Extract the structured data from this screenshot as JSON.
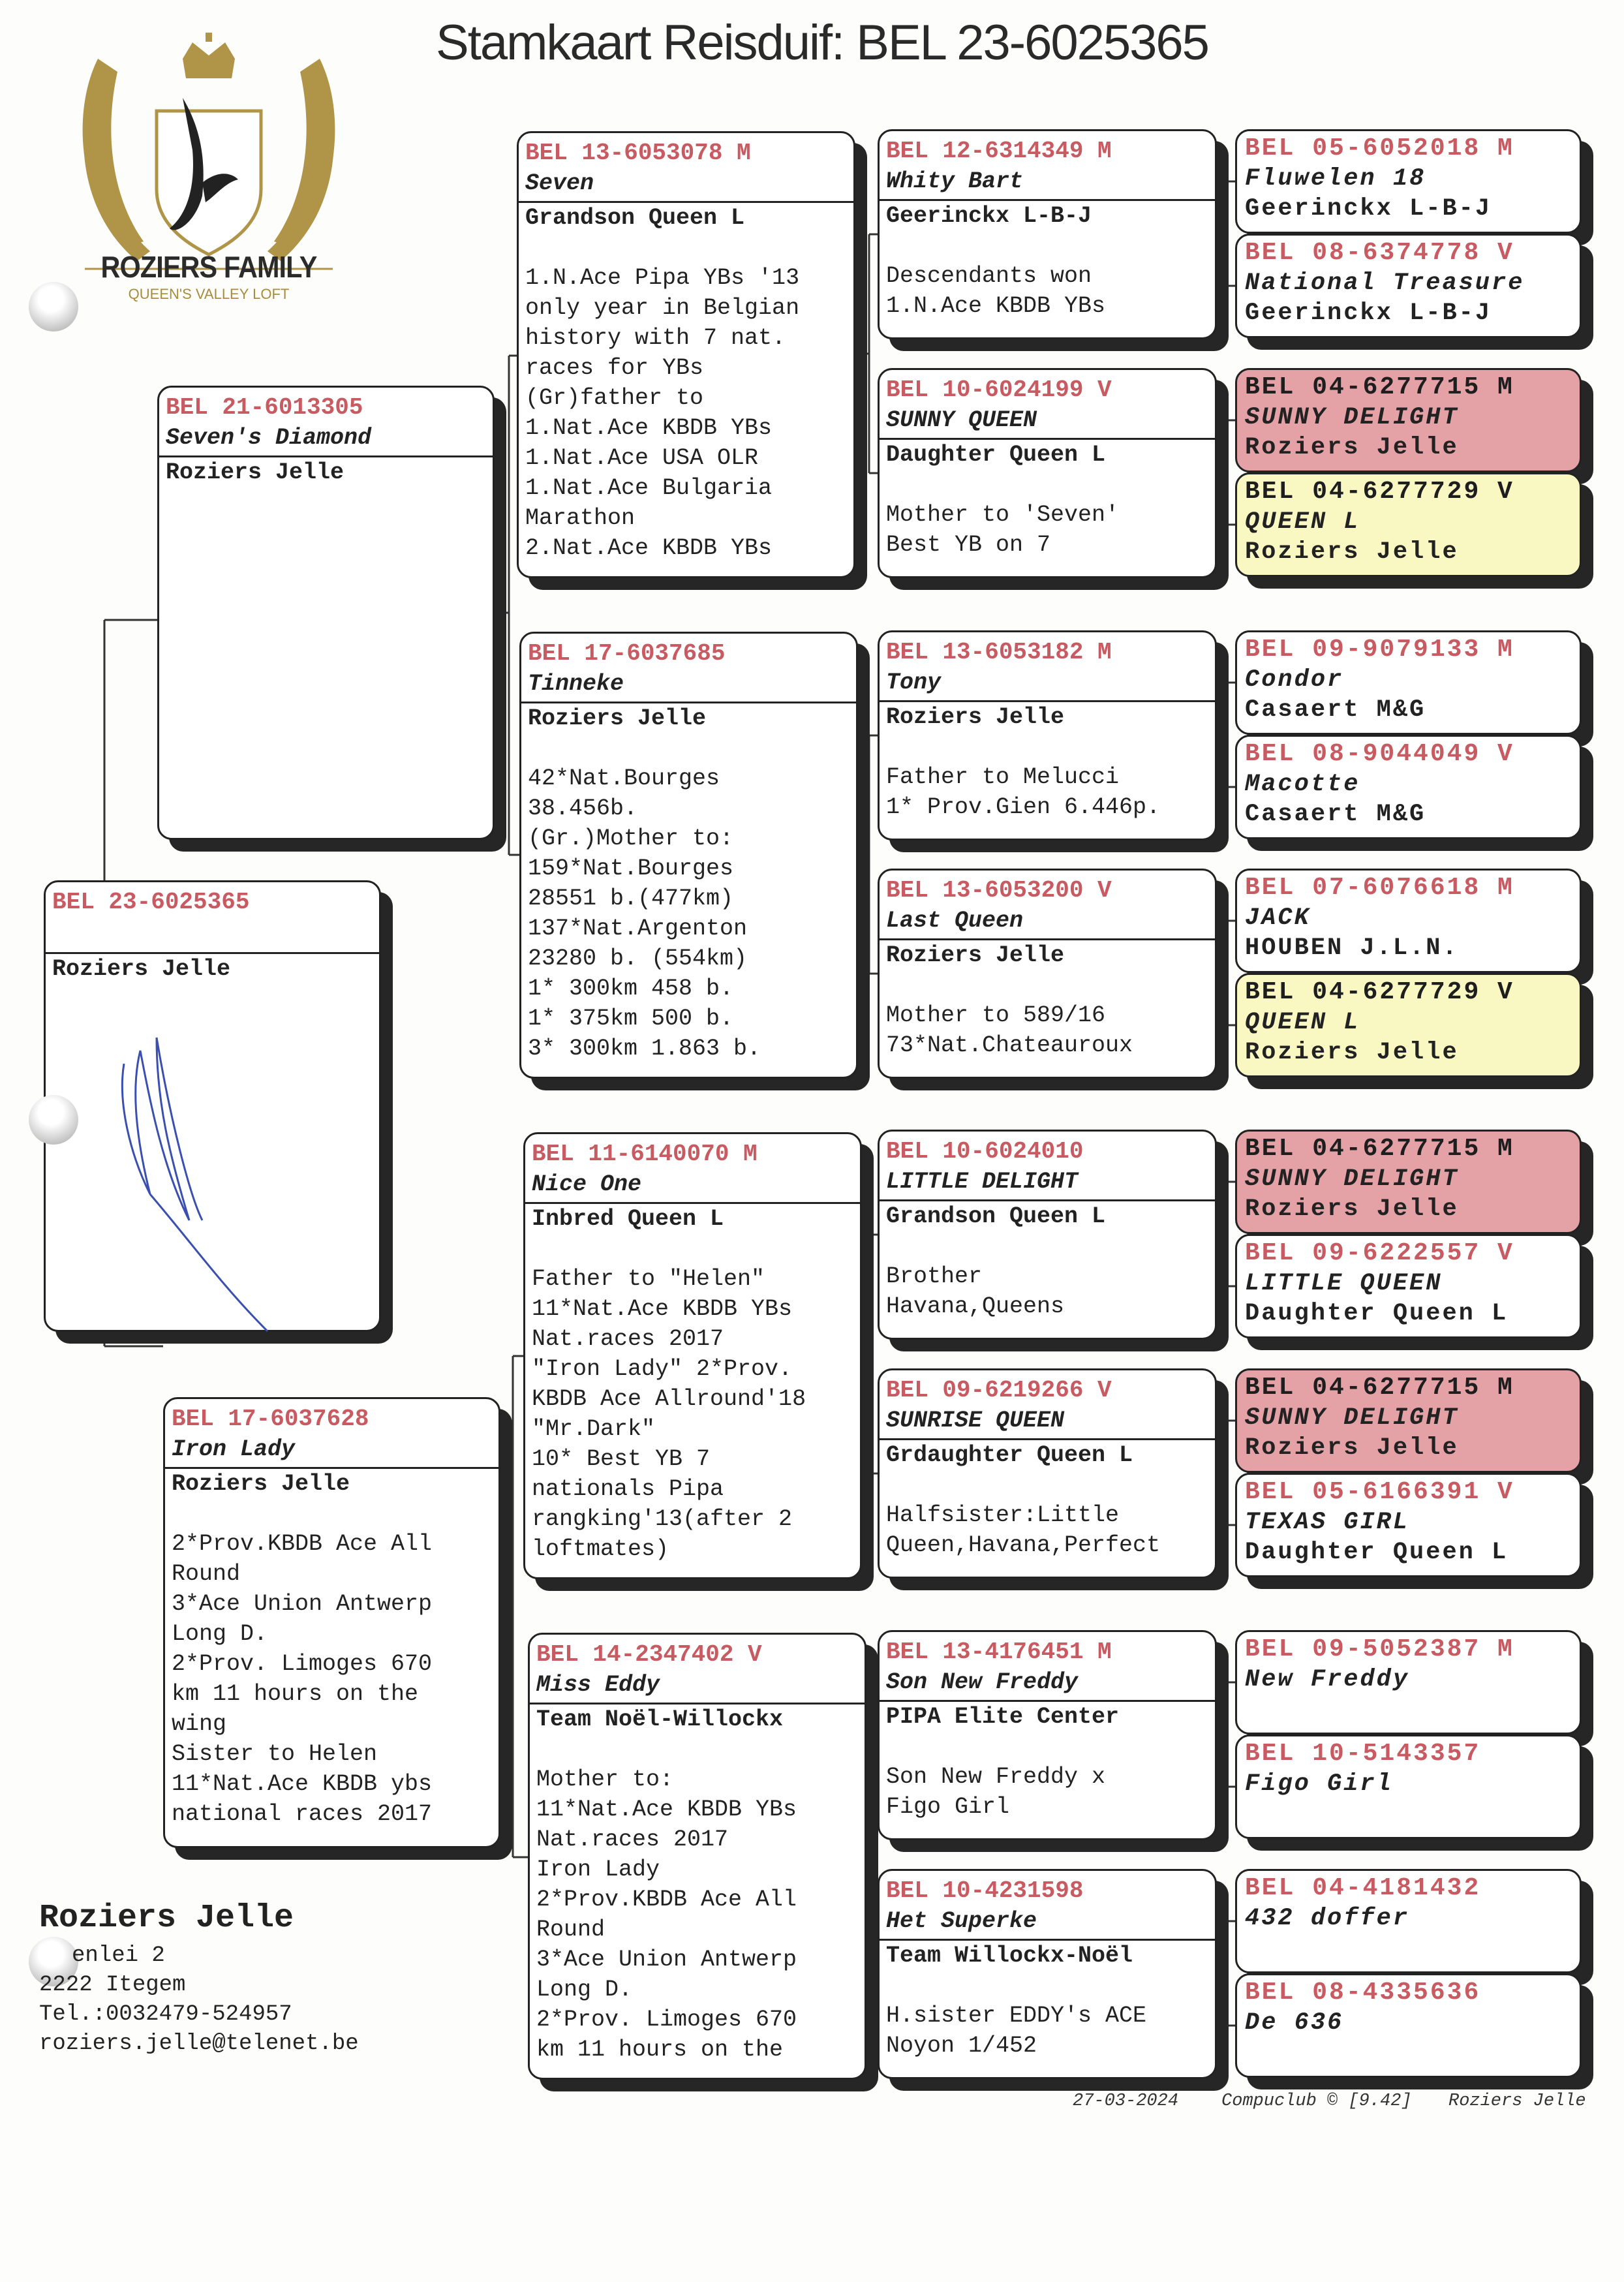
{
  "title": "Stamkaart Reisduif: BEL 23-6025365",
  "logo": {
    "name": "ROZIERS FAMILY",
    "tagline": "QUEEN'S VALLEY LOFT",
    "gold": "#b09448"
  },
  "colors": {
    "ring_red": "#c85a62",
    "highlight_pink": "#e4a2a6",
    "highlight_yellow": "#f9f7c2",
    "signature_blue": "#3a4fb0"
  },
  "subject": {
    "ring": "BEL 23-6025365",
    "owner": "Roziers Jelle"
  },
  "gen2": [
    {
      "ring": "BEL 21-6013305",
      "name": "Seven's Diamond",
      "owner": "Roziers Jelle",
      "notes": []
    },
    {
      "ring": "BEL 17-6037628",
      "name": "Iron Lady",
      "owner": "Roziers Jelle",
      "notes": [
        "2*Prov.KBDB Ace All",
        "Round",
        "3*Ace Union Antwerp",
        "Long D.",
        "2*Prov. Limoges 670",
        "km 11 hours on the",
        "wing",
        "Sister to Helen",
        "11*Nat.Ace KBDB ybs",
        "national races 2017"
      ]
    }
  ],
  "gen3": [
    {
      "ring": "BEL 13-6053078 M",
      "name": "Seven",
      "owner": "Grandson Queen L",
      "notes": [
        "1.N.Ace Pipa YBs '13",
        "only year in Belgian",
        "history with 7 nat.",
        "races for YBs",
        "(Gr)father to",
        "1.Nat.Ace KBDB YBs",
        "1.Nat.Ace USA OLR",
        "1.Nat.Ace Bulgaria",
        "Marathon",
        "2.Nat.Ace KBDB YBs"
      ]
    },
    {
      "ring": "BEL 17-6037685",
      "name": "Tinneke",
      "owner": "Roziers Jelle",
      "notes": [
        "42*Nat.Bourges",
        "38.456b.",
        "(Gr.)Mother to:",
        "159*Nat.Bourges",
        "28551 b.(477km)",
        "137*Nat.Argenton",
        "23280 b. (554km)",
        "1* 300km 458 b.",
        "1* 375km 500 b.",
        "3* 300km 1.863 b."
      ]
    },
    {
      "ring": "BEL 11-6140070 M",
      "name": "Nice One",
      "owner": "Inbred Queen L",
      "notes": [
        "Father to \"Helen\"",
        "11*Nat.Ace KBDB YBs",
        "Nat.races 2017",
        "\"Iron Lady\" 2*Prov.",
        "KBDB Ace Allround'18",
        "\"Mr.Dark\"",
        "10* Best YB 7",
        "nationals Pipa",
        "rangking'13(after 2",
        "loftmates)"
      ]
    },
    {
      "ring": "BEL 14-2347402 V",
      "name": "Miss Eddy",
      "owner": "Team Noël-Willockx",
      "notes": [
        "Mother to:",
        "11*Nat.Ace KBDB YBs",
        "Nat.races 2017",
        "Iron Lady",
        "2*Prov.KBDB Ace All",
        "Round",
        "3*Ace Union Antwerp",
        "Long D.",
        "2*Prov. Limoges 670",
        "km 11 hours on the"
      ]
    }
  ],
  "gen4": [
    {
      "ring": "BEL 12-6314349 M",
      "name": "Whity Bart",
      "owner": "Geerinckx L-B-J",
      "notes": [
        "Descendants won",
        "1.N.Ace KBDB YBs"
      ]
    },
    {
      "ring": "BEL 10-6024199 V",
      "name": "SUNNY QUEEN",
      "owner": "Daughter Queen L",
      "notes": [
        "Mother to 'Seven'",
        "Best YB on 7"
      ]
    },
    {
      "ring": "BEL 13-6053182 M",
      "name": "Tony",
      "owner": "Roziers Jelle",
      "notes": [
        "Father to Melucci",
        "1* Prov.Gien 6.446p."
      ]
    },
    {
      "ring": "BEL 13-6053200 V",
      "name": "Last Queen",
      "owner": "Roziers Jelle",
      "notes": [
        "Mother to 589/16",
        "73*Nat.Chateauroux"
      ]
    },
    {
      "ring": "BEL 10-6024010",
      "name": "LITTLE DELIGHT",
      "owner": "Grandson Queen L",
      "notes": [
        "Brother",
        "Havana,Queens"
      ]
    },
    {
      "ring": "BEL 09-6219266 V",
      "name": "SUNRISE QUEEN",
      "owner": "Grdaughter Queen L",
      "notes": [
        "Halfsister:Little",
        "Queen,Havana,Perfect"
      ]
    },
    {
      "ring": "BEL 13-4176451 M",
      "name": "Son New Freddy",
      "owner": "PIPA Elite Center",
      "notes": [
        "Son New Freddy x",
        "Figo Girl"
      ]
    },
    {
      "ring": "BEL 10-4231598",
      "name": "Het Superke",
      "owner": "Team Willockx-Noël",
      "notes": [
        "H.sister EDDY's ACE",
        "Noyon 1/452"
      ]
    }
  ],
  "gen5": [
    {
      "ring": "BEL 05-6052018 M",
      "name": "Fluwelen 18",
      "owner": "Geerinckx L-B-J",
      "highlight": ""
    },
    {
      "ring": "BEL 08-6374778 V",
      "name": "National Treasure",
      "owner": "Geerinckx L-B-J",
      "highlight": ""
    },
    {
      "ring": "BEL 04-6277715 M",
      "name": "SUNNY DELIGHT",
      "owner": "Roziers Jelle",
      "highlight": "pink"
    },
    {
      "ring": "BEL 04-6277729 V",
      "name": "QUEEN L",
      "owner": "Roziers Jelle",
      "highlight": "yellow"
    },
    {
      "ring": "BEL 09-9079133 M",
      "name": "Condor",
      "owner": "Casaert M&G",
      "highlight": ""
    },
    {
      "ring": "BEL 08-9044049 V",
      "name": "Macotte",
      "owner": "Casaert M&G",
      "highlight": ""
    },
    {
      "ring": "BEL 07-6076618 M",
      "name": "JACK",
      "owner": "HOUBEN J.L.N.",
      "highlight": ""
    },
    {
      "ring": "BEL 04-6277729 V",
      "name": "QUEEN L",
      "owner": "Roziers Jelle",
      "highlight": "yellow"
    },
    {
      "ring": "BEL 04-6277715 M",
      "name": "SUNNY DELIGHT",
      "owner": "Roziers Jelle",
      "highlight": "pink"
    },
    {
      "ring": "BEL 09-6222557 V",
      "name": "LITTLE QUEEN",
      "owner": "Daughter Queen L",
      "highlight": ""
    },
    {
      "ring": "BEL 04-6277715 M",
      "name": "SUNNY DELIGHT",
      "owner": "Roziers Jelle",
      "highlight": "pink"
    },
    {
      "ring": "BEL 05-6166391 V",
      "name": "TEXAS GIRL",
      "owner": "Daughter Queen L",
      "highlight": ""
    },
    {
      "ring": "BEL 09-5052387 M",
      "name": "New Freddy",
      "owner": "",
      "highlight": ""
    },
    {
      "ring": "BEL 10-5143357",
      "name": "Figo Girl",
      "owner": "",
      "highlight": ""
    },
    {
      "ring": "BEL 04-4181432",
      "name": "432 doffer",
      "owner": "",
      "highlight": ""
    },
    {
      "ring": "BEL 08-4335636",
      "name": "De 636",
      "owner": "",
      "highlight": ""
    }
  ],
  "contact": {
    "name": "Roziers Jelle",
    "address1": "enlei 2",
    "address2": "2222  Itegem",
    "phone": "Tel.:0032479-524957",
    "email": "roziers.jelle@telenet.be"
  },
  "footer": {
    "date": "27-03-2024",
    "software": "Compuclub © [9.42]",
    "owner": "Roziers Jelle"
  }
}
